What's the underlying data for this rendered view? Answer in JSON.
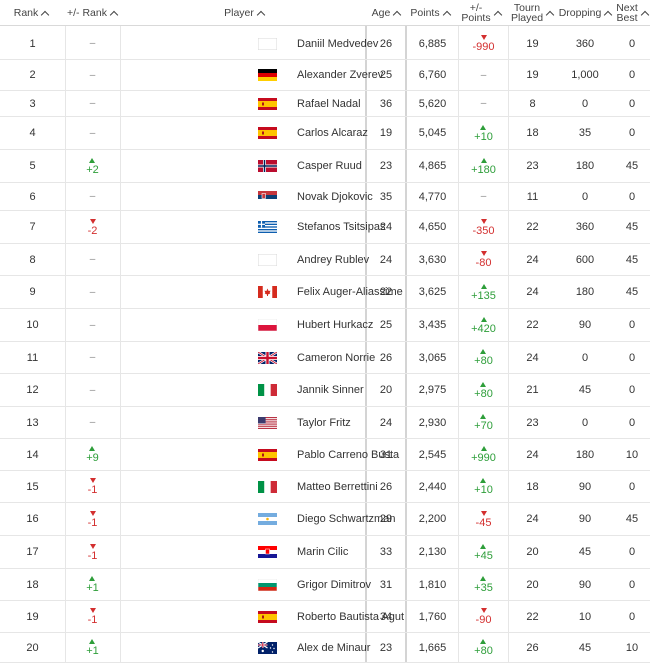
{
  "header": {
    "rank": "Rank",
    "rank_change": "+/- Rank",
    "player": "Player",
    "age": "Age",
    "points": "Points",
    "points_change_line1": "+/-",
    "points_change_line2": "Points",
    "tourn_line1": "Tourn",
    "tourn_line2": "Played",
    "dropping": "Dropping",
    "next_line1": "Next",
    "next_line2": "Best"
  },
  "colors": {
    "up": "#2e9e3a",
    "down": "#d32f2f",
    "text": "#333333",
    "grid": "#e6e6e6"
  },
  "rows": [
    {
      "rank": "1",
      "rank_change": "-",
      "rank_dir": "",
      "player": "Daniil Medvedev",
      "flag": "blank",
      "age": "26",
      "points": "6,885",
      "points_change": "-990",
      "points_dir": "down",
      "tourn": "19",
      "dropping": "360",
      "next_best": "0"
    },
    {
      "rank": "2",
      "rank_change": "-",
      "rank_dir": "",
      "player": "Alexander Zverev",
      "flag": "germany",
      "age": "25",
      "points": "6,760",
      "points_change": "-",
      "points_dir": "",
      "tourn": "19",
      "dropping": "1,000",
      "next_best": "0"
    },
    {
      "rank": "3",
      "rank_change": "-",
      "rank_dir": "",
      "player": "Rafael Nadal",
      "flag": "spain",
      "age": "36",
      "points": "5,620",
      "points_change": "-",
      "points_dir": "",
      "tourn": "8",
      "dropping": "0",
      "next_best": "0"
    },
    {
      "rank": "4",
      "rank_change": "-",
      "rank_dir": "",
      "player": "Carlos Alcaraz",
      "flag": "spain",
      "age": "19",
      "points": "5,045",
      "points_change": "+10",
      "points_dir": "up",
      "tourn": "18",
      "dropping": "35",
      "next_best": "0"
    },
    {
      "rank": "5",
      "rank_change": "+2",
      "rank_dir": "up",
      "player": "Casper Ruud",
      "flag": "norway",
      "age": "23",
      "points": "4,865",
      "points_change": "+180",
      "points_dir": "up",
      "tourn": "23",
      "dropping": "180",
      "next_best": "45"
    },
    {
      "rank": "6",
      "rank_change": "-",
      "rank_dir": "",
      "player": "Novak Djokovic",
      "flag": "serbia",
      "age": "35",
      "points": "4,770",
      "points_change": "-",
      "points_dir": "",
      "tourn": "11",
      "dropping": "0",
      "next_best": "0"
    },
    {
      "rank": "7",
      "rank_change": "-2",
      "rank_dir": "down",
      "player": "Stefanos Tsitsipas",
      "flag": "greece",
      "age": "24",
      "points": "4,650",
      "points_change": "-350",
      "points_dir": "down",
      "tourn": "22",
      "dropping": "360",
      "next_best": "45"
    },
    {
      "rank": "8",
      "rank_change": "-",
      "rank_dir": "",
      "player": "Andrey Rublev",
      "flag": "blank",
      "age": "24",
      "points": "3,630",
      "points_change": "-80",
      "points_dir": "down",
      "tourn": "24",
      "dropping": "600",
      "next_best": "45"
    },
    {
      "rank": "9",
      "rank_change": "-",
      "rank_dir": "",
      "player": "Felix Auger-Aliassime",
      "flag": "canada",
      "age": "22",
      "points": "3,625",
      "points_change": "+135",
      "points_dir": "up",
      "tourn": "24",
      "dropping": "180",
      "next_best": "45"
    },
    {
      "rank": "10",
      "rank_change": "-",
      "rank_dir": "",
      "player": "Hubert Hurkacz",
      "flag": "poland",
      "age": "25",
      "points": "3,435",
      "points_change": "+420",
      "points_dir": "up",
      "tourn": "22",
      "dropping": "90",
      "next_best": "0"
    },
    {
      "rank": "11",
      "rank_change": "-",
      "rank_dir": "",
      "player": "Cameron Norrie",
      "flag": "uk",
      "age": "26",
      "points": "3,065",
      "points_change": "+80",
      "points_dir": "up",
      "tourn": "24",
      "dropping": "0",
      "next_best": "0"
    },
    {
      "rank": "12",
      "rank_change": "-",
      "rank_dir": "",
      "player": "Jannik Sinner",
      "flag": "italy",
      "age": "20",
      "points": "2,975",
      "points_change": "+80",
      "points_dir": "up",
      "tourn": "21",
      "dropping": "45",
      "next_best": "0"
    },
    {
      "rank": "13",
      "rank_change": "-",
      "rank_dir": "",
      "player": "Taylor Fritz",
      "flag": "usa",
      "age": "24",
      "points": "2,930",
      "points_change": "+70",
      "points_dir": "up",
      "tourn": "23",
      "dropping": "0",
      "next_best": "0"
    },
    {
      "rank": "14",
      "rank_change": "+9",
      "rank_dir": "up",
      "player": "Pablo Carreno Busta",
      "flag": "spain",
      "age": "31",
      "points": "2,545",
      "points_change": "+990",
      "points_dir": "up",
      "tourn": "24",
      "dropping": "180",
      "next_best": "10"
    },
    {
      "rank": "15",
      "rank_change": "-1",
      "rank_dir": "down",
      "player": "Matteo Berrettini",
      "flag": "italy",
      "age": "26",
      "points": "2,440",
      "points_change": "+10",
      "points_dir": "up",
      "tourn": "18",
      "dropping": "90",
      "next_best": "0"
    },
    {
      "rank": "16",
      "rank_change": "-1",
      "rank_dir": "down",
      "player": "Diego Schwartzman",
      "flag": "argentina",
      "age": "29",
      "points": "2,200",
      "points_change": "-45",
      "points_dir": "down",
      "tourn": "24",
      "dropping": "90",
      "next_best": "45"
    },
    {
      "rank": "17",
      "rank_change": "-1",
      "rank_dir": "down",
      "player": "Marin Cilic",
      "flag": "croatia",
      "age": "33",
      "points": "2,130",
      "points_change": "+45",
      "points_dir": "up",
      "tourn": "20",
      "dropping": "45",
      "next_best": "0"
    },
    {
      "rank": "18",
      "rank_change": "+1",
      "rank_dir": "up",
      "player": "Grigor Dimitrov",
      "flag": "bulgaria",
      "age": "31",
      "points": "1,810",
      "points_change": "+35",
      "points_dir": "up",
      "tourn": "20",
      "dropping": "90",
      "next_best": "0"
    },
    {
      "rank": "19",
      "rank_change": "-1",
      "rank_dir": "down",
      "player": "Roberto Bautista Agut",
      "flag": "spain",
      "age": "34",
      "points": "1,760",
      "points_change": "-90",
      "points_dir": "down",
      "tourn": "22",
      "dropping": "10",
      "next_best": "0"
    },
    {
      "rank": "20",
      "rank_change": "+1",
      "rank_dir": "up",
      "player": "Alex de Minaur",
      "flag": "australia",
      "age": "23",
      "points": "1,665",
      "points_change": "+80",
      "points_dir": "up",
      "tourn": "26",
      "dropping": "45",
      "next_best": "10"
    }
  ]
}
